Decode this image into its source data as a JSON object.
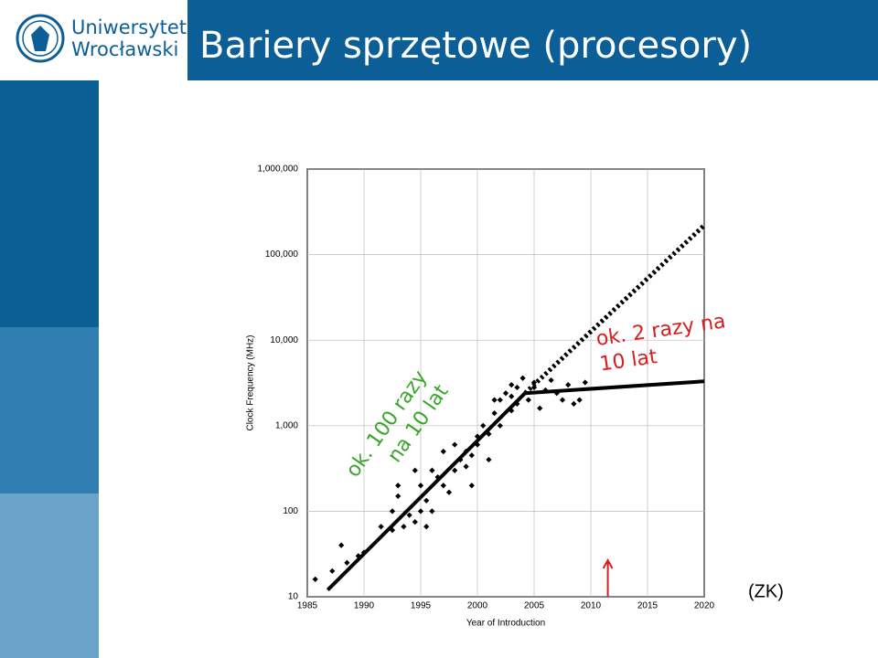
{
  "header": {
    "logo_lines": [
      "Uniwersytet",
      "Wrocławski"
    ],
    "title": "Bariery sprzętowe (procesory)"
  },
  "chart_data": {
    "type": "scatter",
    "log_y": true,
    "grid": true,
    "y_label": "Clock Frequency (MHz)",
    "x_label": "Year of Introduction",
    "xlim": [
      1985,
      2020
    ],
    "xticks": [
      1985,
      1990,
      1995,
      2000,
      2005,
      2010,
      2015,
      2020
    ],
    "ylim": [
      10,
      1000000
    ],
    "yticks": [
      10,
      100,
      {
        "value": 1000,
        "label": "1,000"
      },
      {
        "value": 10000,
        "label": "10,000"
      },
      {
        "value": 100000,
        "label": "100,000"
      },
      {
        "value": 1000000,
        "label": "1,000,000"
      }
    ],
    "points": {
      "color": "#000000",
      "x": [
        1985.7,
        1987.2,
        1988,
        1988.5,
        1989.5,
        1990,
        1991.5,
        1992.5,
        1992.5,
        1993,
        1993,
        1993.5,
        1994,
        1994.5,
        1994.5,
        1995,
        1995,
        1995.5,
        1995.5,
        1996,
        1996,
        1996.5,
        1997,
        1997,
        1997.5,
        1998,
        1998,
        1998.5,
        1999,
        1999,
        1999.5,
        1999.5,
        2000,
        2000,
        2000.5,
        2001,
        2001,
        2001.5,
        2002,
        2002,
        2002.5,
        2003,
        2003,
        2003.5,
        2003.5,
        2004,
        2004.5,
        2005,
        2005.5,
        2006,
        2006.5,
        2007,
        2007.5,
        2008,
        2008.5,
        2009,
        2009.5,
        2001.5,
        2003,
        2005
      ],
      "values": [
        16,
        20,
        40,
        25,
        30,
        33,
        66,
        60,
        100,
        200,
        150,
        66,
        90,
        75,
        300,
        100,
        200,
        66,
        133,
        100,
        300,
        250,
        200,
        500,
        166,
        300,
        600,
        400,
        333,
        500,
        200,
        450,
        600,
        750,
        1000,
        400,
        800,
        1400,
        1000,
        2000,
        2400,
        1500,
        3000,
        2800,
        1800,
        3600,
        2000,
        3200,
        1600,
        2600,
        3400,
        2400,
        2000,
        3000,
        1800,
        2000,
        3200,
        2000,
        2200,
        2800
      ]
    },
    "lines": [
      {
        "color": "#000000",
        "style": "solid",
        "x": [
          1986.8,
          2004.2
        ],
        "values": [
          12,
          2400
        ]
      },
      {
        "color": "#000000",
        "style": "solid",
        "x": [
          2004.2,
          2020
        ],
        "values": [
          2400,
          3300
        ]
      },
      {
        "color": "#000000",
        "style": "dotted",
        "x": [
          2004.2,
          2020
        ],
        "values": [
          2400,
          220000
        ]
      }
    ],
    "annotations": [
      {
        "lines": [
          "ok. 100 razy",
          "na 10 lat"
        ],
        "color": "#3aa52a"
      },
      {
        "lines": [
          "ok. 2 razy na",
          "10 lat"
        ],
        "color": "#d42020"
      }
    ],
    "arrow_x": 2011.5,
    "arrow_color": "#d42020"
  },
  "footnote": "(ZK)"
}
